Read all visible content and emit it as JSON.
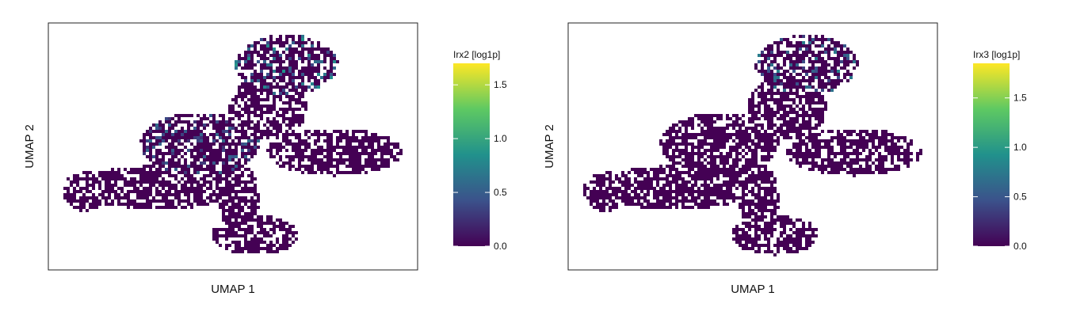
{
  "chart_data": [
    {
      "type": "heatmap",
      "subtype": "hexbin-umap",
      "xlabel": "UMAP 1",
      "ylabel": "UMAP 2",
      "colorbar": {
        "title": "Irx2 [log1p]",
        "range": [
          0.0,
          1.7
        ],
        "ticks": [
          0.0,
          0.5,
          1.0,
          1.5
        ],
        "tick_labels": [
          "0.0",
          "0.5",
          "1.0",
          "1.5"
        ],
        "colormap": [
          "#440154",
          "#3b528b",
          "#21918c",
          "#5ec962",
          "#fde725"
        ]
      },
      "highlights": [
        {
          "region": "top-right lobe",
          "level": 0.9
        },
        {
          "region": "upper-left lobe rim",
          "level": 0.6
        }
      ],
      "background_level": 0.0
    },
    {
      "type": "heatmap",
      "subtype": "hexbin-umap",
      "xlabel": "UMAP 1",
      "ylabel": "UMAP 2",
      "colorbar": {
        "title": "Irx3 [log1p]",
        "range": [
          0.0,
          1.85
        ],
        "ticks": [
          0.0,
          0.5,
          1.0,
          1.5
        ],
        "tick_labels": [
          "0.0",
          "0.5",
          "1.0",
          "1.5"
        ],
        "colormap": [
          "#440154",
          "#3b528b",
          "#21918c",
          "#5ec962",
          "#fde725"
        ]
      },
      "highlights": [
        {
          "region": "top-right lobe",
          "level": 0.8
        }
      ],
      "background_level": 0.0
    }
  ]
}
